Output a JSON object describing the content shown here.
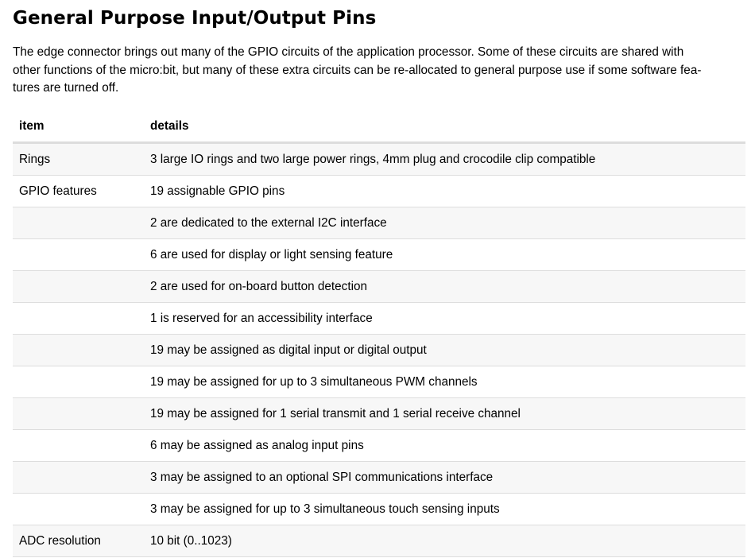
{
  "title": "General Purpose Input/Output Pins",
  "intro_lines": [
    "The edge connector brings out many of the GPIO circuits of the application processor. Some of these circuits are shared with",
    "other functions of the micro:bit, but many of these extra circuits can be re-allocated to general purpose use if some software fea-",
    "tures are turned off."
  ],
  "table": {
    "headers": [
      "item",
      "details"
    ],
    "rows": [
      [
        "Rings",
        "3 large IO rings and two large power rings, 4mm plug and crocodile clip compatible"
      ],
      [
        "GPIO features",
        "19 assignable GPIO pins"
      ],
      [
        "",
        "2 are dedicated to the external I2C interface"
      ],
      [
        "",
        "6 are used for display or light sensing feature"
      ],
      [
        "",
        "2 are used for on-board button detection"
      ],
      [
        "",
        "1 is reserved for an accessibility interface"
      ],
      [
        "",
        "19 may be assigned as digital input or digital output"
      ],
      [
        "",
        "19 may be assigned for up to 3 simultaneous PWM channels"
      ],
      [
        "",
        "19 may be assigned for 1 serial transmit and 1 serial receive channel"
      ],
      [
        "",
        "6 may be assigned as analog input pins"
      ],
      [
        "",
        "3 may be assigned to an optional SPI communications interface"
      ],
      [
        "",
        "3 may be assigned for up to 3 simultaneous touch sensing inputs"
      ],
      [
        "ADC resolution",
        "10 bit (0..1023)"
      ]
    ]
  }
}
